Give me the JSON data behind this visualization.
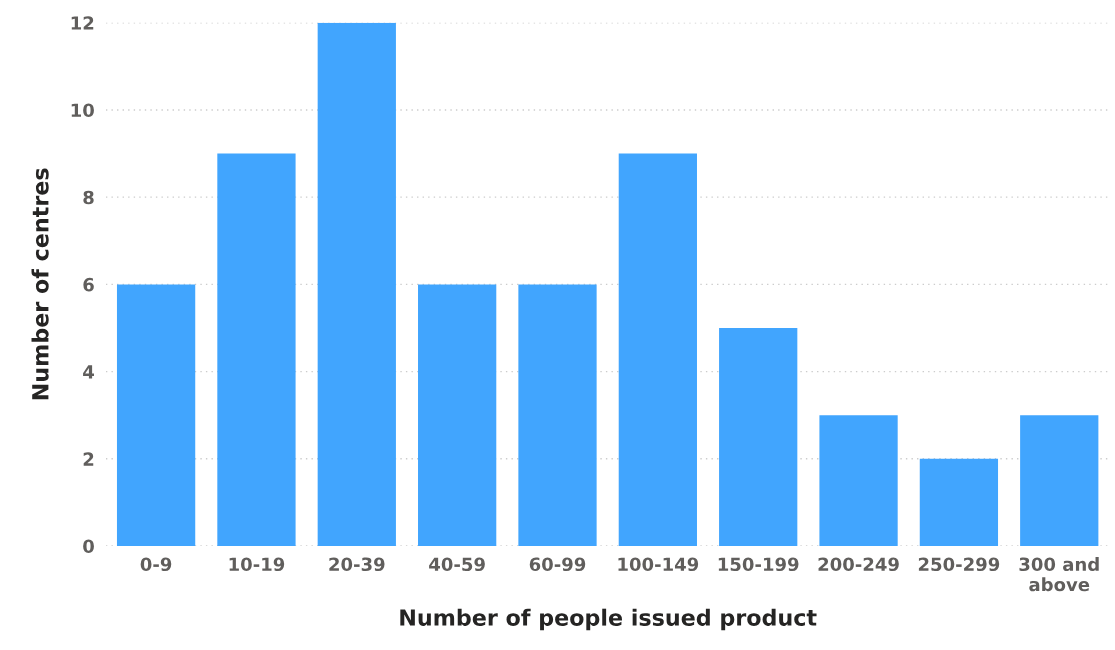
{
  "chart_data": {
    "type": "bar",
    "xlabel": "Number of people issued product",
    "ylabel": "Number of centres",
    "categories": [
      "0-9",
      "10-19",
      "20-39",
      "40-59",
      "60-99",
      "100-149",
      "150-199",
      "200-249",
      "250-299",
      "300 and\nabove"
    ],
    "values": [
      6,
      9,
      12,
      6,
      6,
      9,
      5,
      3,
      2,
      3
    ],
    "color": "#41a5fe",
    "ylim": [
      0,
      12
    ],
    "yticks": [
      0,
      2,
      4,
      6,
      8,
      10,
      12
    ],
    "grid": "y",
    "legend": false
  }
}
